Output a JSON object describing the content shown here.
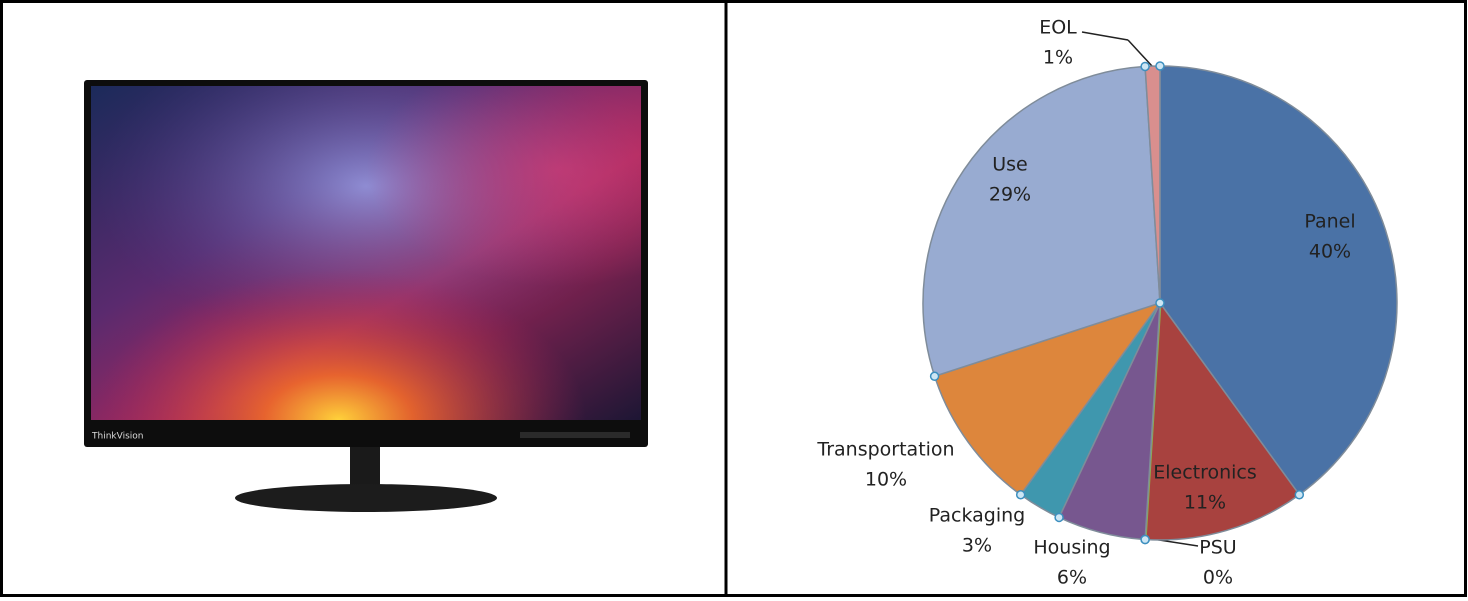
{
  "image": {
    "brand_label": "ThinkVision"
  },
  "chart_data": {
    "type": "pie",
    "categories": [
      "Panel",
      "Electronics",
      "PSU",
      "Housing",
      "Packaging",
      "Transportation",
      "Use",
      "EOL"
    ],
    "values": [
      40,
      11,
      0,
      6,
      3,
      10,
      29,
      1
    ],
    "value_labels": [
      "40%",
      "11%",
      "0%",
      "6%",
      "3%",
      "10%",
      "29%",
      "1%"
    ],
    "colors": [
      "#4a72a6",
      "#a8423f",
      "#8db04a",
      "#77578f",
      "#3f97ae",
      "#dd863c",
      "#98abd1",
      "#d98f8e"
    ]
  }
}
